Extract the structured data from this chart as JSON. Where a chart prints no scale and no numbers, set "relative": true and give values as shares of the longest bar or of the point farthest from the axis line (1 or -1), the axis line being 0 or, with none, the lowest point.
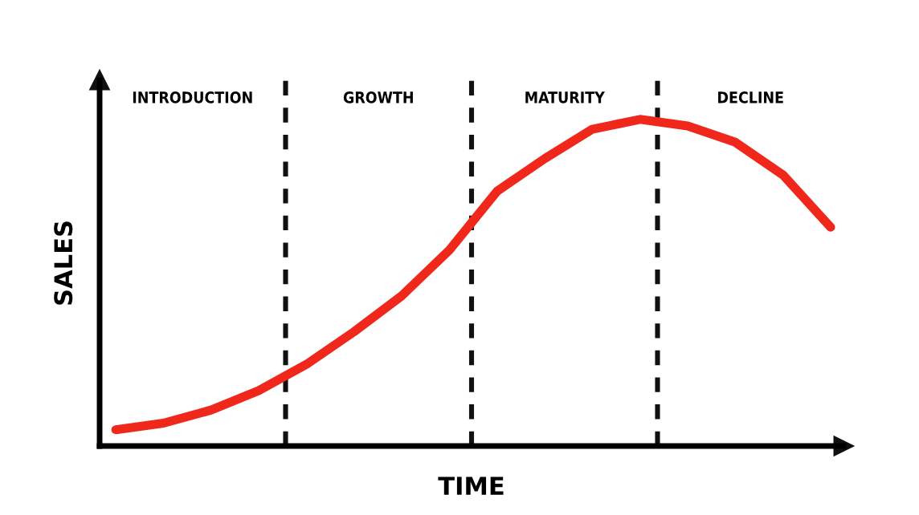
{
  "chart_data": {
    "type": "line",
    "relative": true,
    "xlabel": "TIME",
    "ylabel": "SALES",
    "marker": "none",
    "line_style": "solid",
    "categories": [
      null,
      null,
      null,
      null,
      null,
      null,
      null,
      null,
      null,
      null,
      null,
      null,
      null,
      null,
      null,
      null
    ],
    "series": [
      {
        "color": "#f0281c",
        "values": [
          0.05,
          0.07,
          0.11,
          0.17,
          0.25,
          0.35,
          0.46,
          0.6,
          0.78,
          0.88,
          0.97,
          1.0,
          0.98,
          0.93,
          0.83,
          0.67
        ]
      }
    ],
    "annotations": [
      "INTRODUCTION",
      "GROWTH",
      "MATURITY",
      "DECLINE"
    ]
  }
}
